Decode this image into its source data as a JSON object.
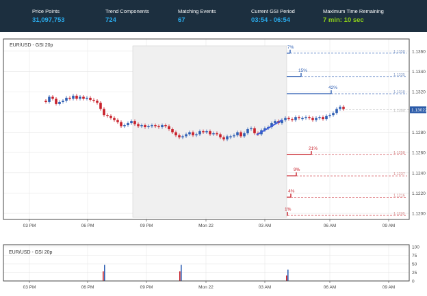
{
  "stats": [
    {
      "label": "Price Points",
      "value": "31,097,753",
      "color": "blue"
    },
    {
      "label": "Trend Components",
      "value": "724",
      "color": "blue"
    },
    {
      "label": "Matching Events",
      "value": "67",
      "color": "blue"
    },
    {
      "label": "Current GSI Period",
      "value": "03:54 - 06:54",
      "color": "blue"
    },
    {
      "label": "Maximum Time Remaining",
      "value": "7 min: 10 sec",
      "color": "green"
    }
  ],
  "main_chart": {
    "legend": "EUR/USD - GSI 20p",
    "y_ticks": [
      "1.1360",
      "1.1340",
      "1.1320",
      "1.13022",
      "1.1280",
      "1.1260",
      "1.1240",
      "1.1220",
      "1.1200"
    ],
    "current_price": "1.13022",
    "x_ticks": [
      "03 PM",
      "06 PM",
      "09 PM",
      "Mon 22",
      "03 AM",
      "06 AM",
      "09 AM"
    ],
    "up_projections": [
      {
        "pct": "7%",
        "price": "1.1358"
      },
      {
        "pct": "15%",
        "price": "1.1335"
      },
      {
        "pct": "42%",
        "price": "1.1318"
      }
    ],
    "down_projections": [
      {
        "pct": "21%",
        "price": "1.1258"
      },
      {
        "pct": "9%",
        "price": "1.1237"
      },
      {
        "pct": "4%",
        "price": "1.1216"
      },
      {
        "pct": "1%",
        "price": "1.1198"
      }
    ],
    "colors": {
      "up": "#2f5fb3",
      "down": "#c8202a",
      "shade": "#f0f0f0",
      "border": "#444444",
      "grid": "#e6e6e6"
    }
  },
  "volume_chart": {
    "legend": "EUR/USD - GSI 20p",
    "y_ticks": [
      "100",
      "75",
      "50",
      "25",
      "0"
    ],
    "x_ticks": [
      "03 PM",
      "06 PM",
      "09 PM",
      "Mon 22",
      "03 AM",
      "06 AM",
      "09 AM"
    ]
  }
}
